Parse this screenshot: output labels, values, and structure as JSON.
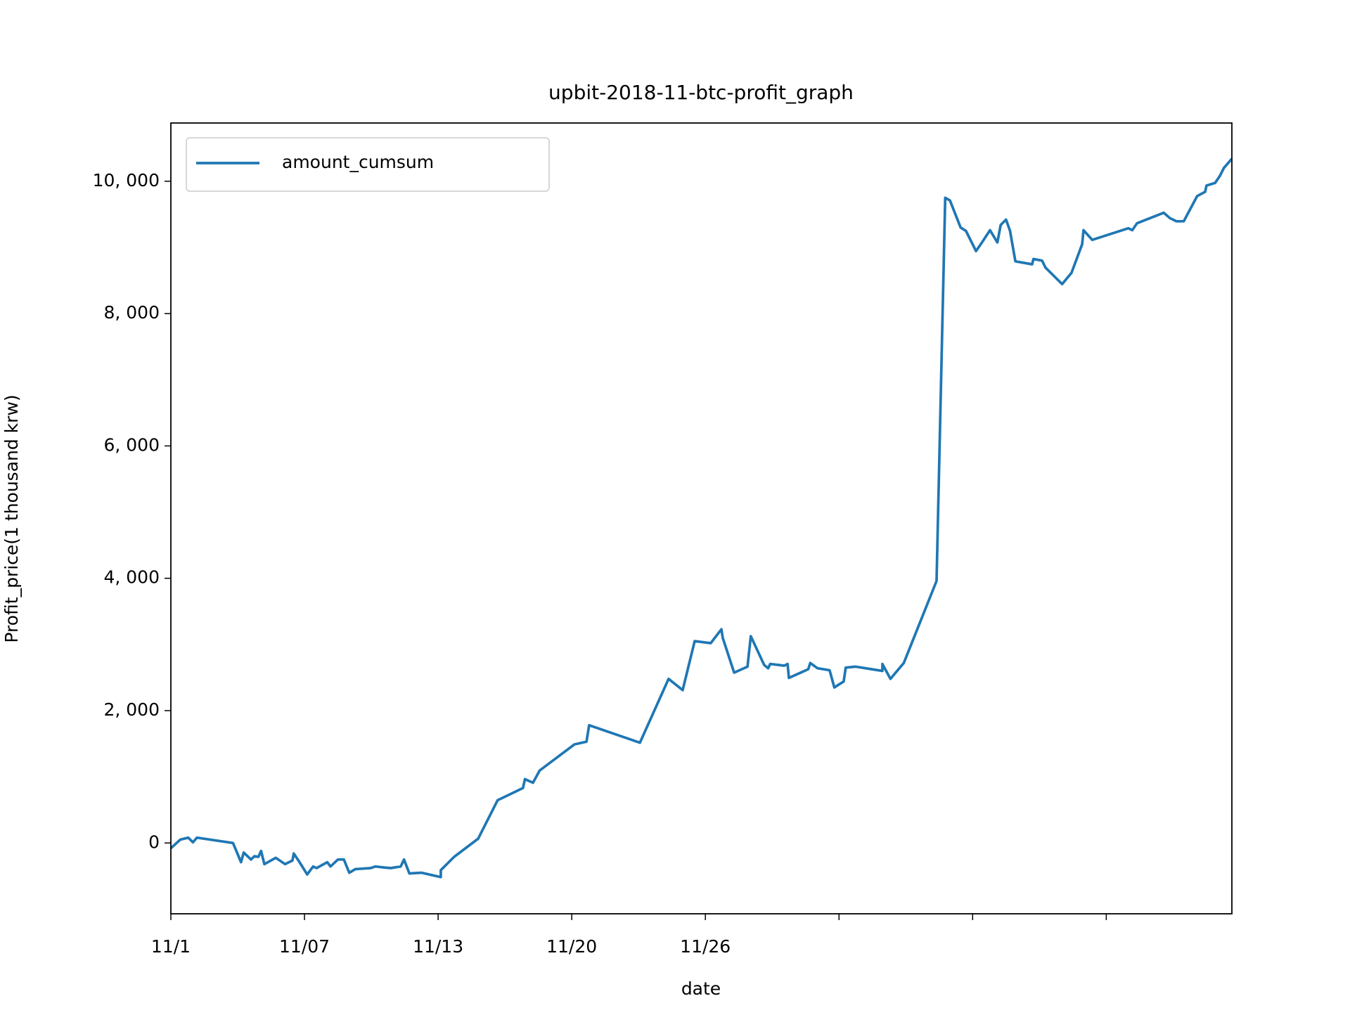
{
  "chart_data": {
    "type": "line",
    "title": "upbit-2018-11-btc-profit_graph",
    "xlabel": "date",
    "ylabel": "Profit_price(1 thousand krw)",
    "legend": "upper left",
    "grid": false,
    "xlim": [
      0,
      158.8
    ],
    "xticks": [
      {
        "value": 0,
        "label": "11/1"
      },
      {
        "value": 20,
        "label": "11/07"
      },
      {
        "value": 40,
        "label": "11/13"
      },
      {
        "value": 60,
        "label": "11/20"
      },
      {
        "value": 80,
        "label": "11/26"
      },
      {
        "value": 100,
        "label": null
      },
      {
        "value": 120,
        "label": null
      },
      {
        "value": 140,
        "label": null
      }
    ],
    "ylim": [
      -1070,
      10880
    ],
    "yticks": [
      0,
      {
        "value": 2000,
        "label": "2, 000"
      },
      {
        "value": 4000,
        "label": "4, 000"
      },
      {
        "value": 6000,
        "label": "6, 000"
      },
      {
        "value": 8000,
        "label": "8, 000"
      },
      {
        "value": 10000,
        "label": "10, 000"
      }
    ],
    "x": [
      0,
      1.4,
      2.6,
      3.3,
      3.9,
      9.3,
      10.5,
      10.9,
      12.0,
      12.5,
      13.1,
      13.5,
      14.0,
      15.7,
      17.1,
      18.2,
      18.4,
      19.2,
      20.4,
      21.3,
      21.8,
      23.4,
      23.9,
      25.0,
      25.9,
      26.7,
      27.6,
      29.9,
      30.6,
      31.9,
      32.9,
      34.4,
      34.9,
      35.7,
      37.5,
      40.4,
      40.4,
      42.4,
      46.0,
      48.9,
      52.7,
      53.0,
      54.2,
      55.2,
      60.4,
      62.2,
      62.6,
      70.2,
      74.5,
      76.6,
      78.4,
      80.8,
      82.4,
      82.6,
      84.3,
      86.3,
      86.8,
      88.8,
      89.4,
      89.7,
      91.8,
      92.3,
      92.5,
      95.4,
      95.7,
      96.8,
      98.6,
      99.3,
      100.7,
      101.0,
      102.5,
      106.5,
      106.5,
      107.7,
      109.7,
      114.6,
      115.9,
      116.6,
      118.2,
      119.0,
      120.5,
      121.4,
      122.6,
      123.7,
      124.2,
      125.0,
      125.6,
      126.4,
      128.9,
      129.1,
      130.4,
      130.9,
      133.4,
      134.8,
      136.4,
      136.6,
      137.9,
      143.3,
      143.9,
      144.6,
      148.6,
      149.5,
      150.5,
      151.6,
      153.6,
      154.8,
      155.0,
      156.3,
      157.0,
      157.6,
      158.8
    ],
    "series": [
      {
        "name": "amount_cumsum",
        "color": "#1f77b4",
        "values": [
          -80,
          50,
          80,
          10,
          80,
          0,
          -290,
          -145,
          -250,
          -200,
          -210,
          -120,
          -320,
          -225,
          -320,
          -265,
          -160,
          -280,
          -475,
          -355,
          -380,
          -290,
          -355,
          -250,
          -250,
          -450,
          -395,
          -380,
          -355,
          -370,
          -380,
          -355,
          -250,
          -460,
          -450,
          -515,
          -410,
          -210,
          65,
          645,
          830,
          965,
          910,
          1095,
          1490,
          1530,
          1780,
          1515,
          2480,
          2310,
          3050,
          3020,
          3230,
          3100,
          2575,
          2665,
          3125,
          2690,
          2640,
          2705,
          2680,
          2705,
          2495,
          2625,
          2720,
          2640,
          2610,
          2350,
          2440,
          2650,
          2665,
          2600,
          2705,
          2480,
          2720,
          3960,
          9750,
          9710,
          9300,
          9250,
          8945,
          9075,
          9260,
          9075,
          9340,
          9420,
          9250,
          8790,
          8745,
          8825,
          8800,
          8695,
          8445,
          8615,
          9050,
          9260,
          9115,
          9290,
          9260,
          9365,
          9525,
          9445,
          9395,
          9395,
          9775,
          9840,
          9935,
          9975,
          10080,
          10200,
          10340
        ]
      }
    ]
  }
}
